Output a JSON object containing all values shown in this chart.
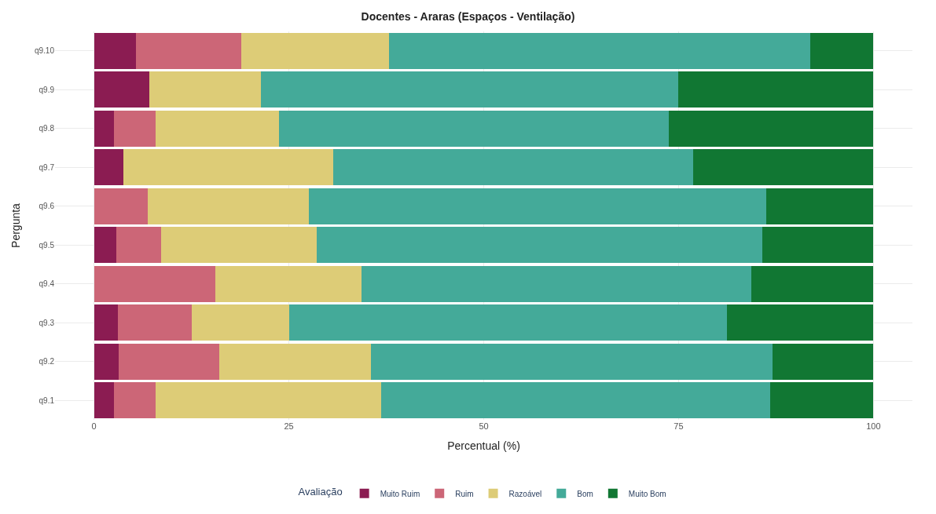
{
  "chart_data": {
    "type": "bar",
    "title": "Docentes - Araras (Espaços - Ventilação)",
    "xlabel": "Percentual (%)",
    "ylabel": "Pergunta",
    "legend_title": "Avaliação",
    "orientation": "horizontal",
    "stacked": true,
    "grid": true,
    "legend": "bottom",
    "categories": [
      "q9.10",
      "q9.9",
      "q9.8",
      "q9.7",
      "q9.6",
      "q9.5",
      "q9.4",
      "q9.3",
      "q9.2",
      "q9.1"
    ],
    "series": [
      {
        "name": "Muito Ruim",
        "color": "#8b1c52",
        "values": [
          5.4,
          7.1,
          2.6,
          3.8,
          0,
          2.9,
          0,
          3.1,
          3.2,
          2.6
        ]
      },
      {
        "name": "Ruim",
        "color": "#cc6677",
        "values": [
          13.5,
          0,
          5.3,
          0,
          6.9,
          5.7,
          15.6,
          9.4,
          12.9,
          5.3
        ]
      },
      {
        "name": "Razoável",
        "color": "#ddcc77",
        "values": [
          18.9,
          14.3,
          15.8,
          26.9,
          20.7,
          20.0,
          18.7,
          12.5,
          19.4,
          28.9
        ]
      },
      {
        "name": "Bom",
        "color": "#44aa99",
        "values": [
          54.1,
          53.6,
          50.0,
          46.2,
          58.6,
          57.1,
          50.0,
          56.2,
          51.6,
          50.0
        ]
      },
      {
        "name": "Muito Bom",
        "color": "#117733",
        "values": [
          8.1,
          25.0,
          26.3,
          23.1,
          13.8,
          14.3,
          15.7,
          18.8,
          12.9,
          13.2
        ]
      }
    ],
    "xlim": [
      -5,
      105
    ],
    "xticks": [
      0,
      25,
      50,
      75,
      100
    ]
  }
}
